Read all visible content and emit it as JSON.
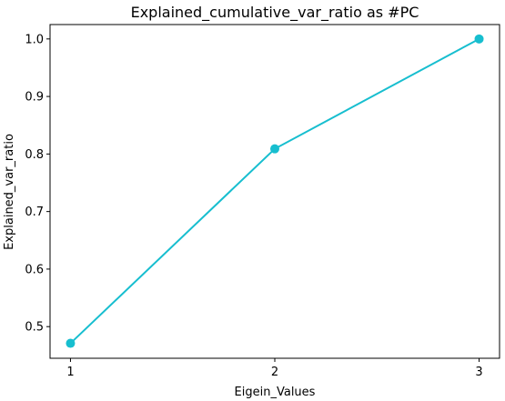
{
  "chart_data": {
    "type": "line",
    "title": "Explained_cumulative_var_ratio as #PC",
    "xlabel": "Eigein_Values",
    "ylabel": "Explained_var_ratio",
    "xlim": [
      0.9,
      3.1
    ],
    "ylim": [
      0.445,
      1.025
    ],
    "x": [
      1,
      2,
      3
    ],
    "y": [
      0.471,
      0.809,
      1.0
    ],
    "x_ticks": [
      1,
      2,
      3
    ],
    "x_tick_labels": [
      "1",
      "2",
      "3"
    ],
    "y_ticks": [
      0.5,
      0.6,
      0.7,
      0.8,
      0.9,
      1.0
    ],
    "y_tick_labels": [
      "0.5",
      "0.6",
      "0.7",
      "0.8",
      "0.9",
      "1.0"
    ],
    "color": "#17becf",
    "marker": "circle",
    "grid": false,
    "legend": "none"
  }
}
